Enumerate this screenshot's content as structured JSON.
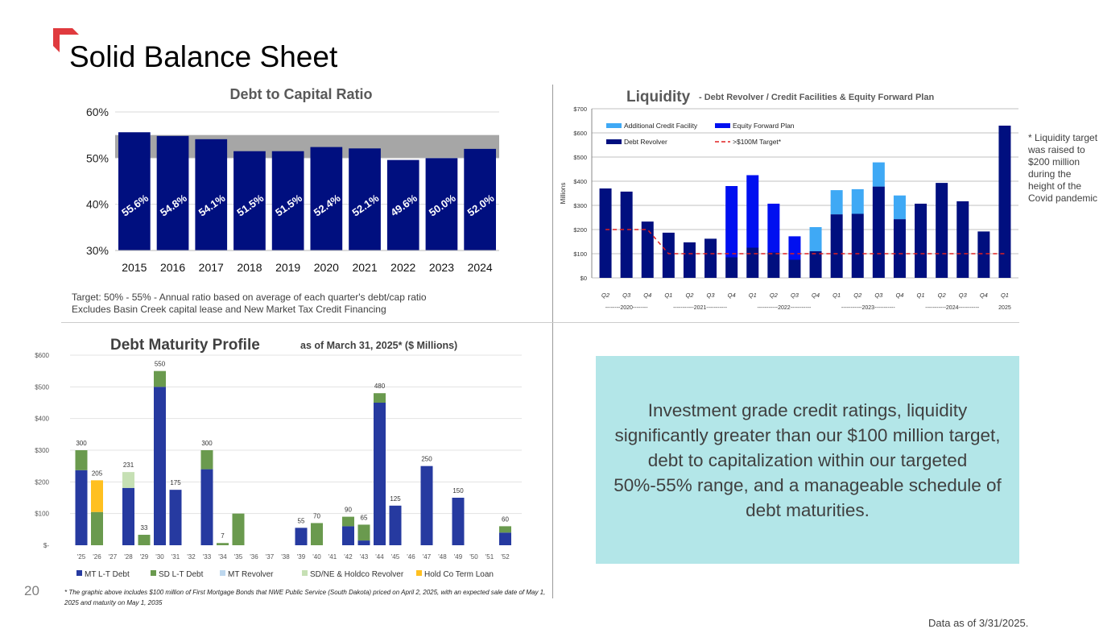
{
  "slide": {
    "title": "Solid Balance Sheet",
    "page_number": "20",
    "brand_color": "#e03a3e",
    "debt_cap_notes": [
      "Target:  50% - 55% - Annual ratio based on average of each quarter's debt/cap ratio",
      "Excludes Basin Creek capital lease and New Market Tax Credit Financing"
    ],
    "liquidity_note": "* Liquidity target was raised to $200 million during the height of the Covid pandemic",
    "callout": "Investment grade credit ratings, liquidity significantly greater than our $100 million target, debt to capitalization within our targeted 50%-55% range, and a manageable schedule of debt maturities.",
    "footnote": "* The graphic above includes $100 million of First Mortgage Bonds that NWE Public Service (South Dakota) priced on April 2, 2025, with an expected sale date of May 1, 2025 and maturity on May 1, 2035",
    "data_as_of": "Data as of 3/31/2025."
  },
  "chart_data": [
    {
      "type": "bar",
      "title": "Debt to Capital Ratio",
      "categories": [
        "2015",
        "2016",
        "2017",
        "2018",
        "2019",
        "2020",
        "2021",
        "2022",
        "2023",
        "2024"
      ],
      "values": [
        55.6,
        54.8,
        54.1,
        51.5,
        51.5,
        52.4,
        52.1,
        49.6,
        50.0,
        52.0
      ],
      "data_labels": [
        "55.6%",
        "54.8%",
        "54.1%",
        "51.5%",
        "51.5%",
        "52.4%",
        "52.1%",
        "49.6%",
        "50.0%",
        "52.0%"
      ],
      "ylim": [
        30,
        60
      ],
      "yticks": [
        "30%",
        "40%",
        "50%",
        "60%"
      ],
      "target_band": [
        50,
        55
      ],
      "colors": {
        "bar": "#000f7f",
        "band": "#a6a6a6"
      },
      "grid": true
    },
    {
      "type": "bar",
      "stacked": true,
      "title": "Liquidity",
      "subtitle": " - Debt Revolver / Credit Facilities & Equity Forward Plan",
      "ylabel": "Millions",
      "ylim": [
        0,
        700
      ],
      "yticks": [
        "$0",
        "$100",
        "$200",
        "$300",
        "$400",
        "$500",
        "$600",
        "$700"
      ],
      "categories": [
        "Q2",
        "Q3",
        "Q4",
        "Q1",
        "Q2",
        "Q3",
        "Q4",
        "Q1",
        "Q2",
        "Q3",
        "Q4",
        "Q1",
        "Q2",
        "Q3",
        "Q4",
        "Q1",
        "Q2",
        "Q3",
        "Q4",
        "Q1"
      ],
      "year_groups": [
        "--------2020--------",
        "-----------2021-----------",
        "-----------2022-----------",
        "-----------2023-----------",
        "-----------2024-----------",
        "2025"
      ],
      "series": [
        {
          "name": "Debt Revolver",
          "color": "#000f7f",
          "values": [
            370,
            357,
            233,
            187,
            147,
            162,
            85,
            125,
            105,
            75,
            110,
            263,
            265,
            378,
            243,
            307,
            393,
            317,
            192,
            630
          ]
        },
        {
          "name": "Equity Forward Plan",
          "color": "#0010f0",
          "values": [
            0,
            0,
            0,
            0,
            0,
            0,
            295,
            300,
            202,
            97,
            0,
            0,
            0,
            0,
            0,
            0,
            0,
            0,
            0,
            0
          ]
        },
        {
          "name": "Additional Credit Facility",
          "color": "#3fa9f5",
          "values": [
            0,
            0,
            0,
            0,
            0,
            0,
            0,
            0,
            0,
            0,
            100,
            100,
            102,
            100,
            98,
            0,
            0,
            0,
            0,
            0
          ]
        }
      ],
      "target_line": {
        "name": ">$100M Target*",
        "color": "#e02020",
        "values": [
          200,
          200,
          200,
          100,
          100,
          100,
          100,
          100,
          100,
          100,
          100,
          100,
          100,
          100,
          100,
          100,
          100,
          100,
          100,
          100
        ]
      },
      "legend": "top-left",
      "grid": true
    },
    {
      "type": "bar",
      "stacked": true,
      "title": "Debt Maturity Profile",
      "subtitle": " as of March 31, 2025* ($ Millions)",
      "ylim": [
        0,
        600
      ],
      "yticks": [
        "$-",
        "$100",
        "$200",
        "$300",
        "$400",
        "$500",
        "$600"
      ],
      "categories": [
        "'25",
        "'26",
        "'27",
        "'28",
        "'29",
        "'30",
        "'31",
        "'32",
        "'33",
        "'34",
        "'35",
        "'36",
        "'37",
        "'38",
        "'39",
        "'40",
        "'41",
        "'42",
        "'43",
        "'44",
        "'45",
        "'46",
        "'47",
        "'48",
        "'49",
        "'50",
        "'51",
        "'52"
      ],
      "totals_labels": [
        "300",
        "205",
        "",
        "231",
        "33",
        "550",
        "175",
        "",
        "300",
        "7",
        "",
        "",
        "",
        "",
        "55",
        "70",
        "",
        "90",
        "65",
        "480",
        "125",
        "",
        "250",
        "",
        "150",
        "",
        "",
        "60"
      ],
      "series": [
        {
          "name": "MT L-T Debt",
          "color": "#263aa0",
          "values": [
            237,
            0,
            0,
            181,
            0,
            500,
            175,
            0,
            240,
            0,
            0,
            0,
            0,
            0,
            55,
            0,
            0,
            60,
            15,
            450,
            125,
            0,
            250,
            0,
            150,
            0,
            0,
            40
          ]
        },
        {
          "name": "SD L-T Debt",
          "color": "#6a9a4e",
          "values": [
            63,
            105,
            0,
            0,
            33,
            50,
            0,
            0,
            60,
            7,
            100,
            0,
            0,
            0,
            0,
            70,
            0,
            30,
            50,
            30,
            0,
            0,
            0,
            0,
            0,
            0,
            0,
            20
          ]
        },
        {
          "name": "MT Revolver",
          "color": "#bdd7ee",
          "values": [
            0,
            0,
            0,
            0,
            0,
            0,
            0,
            0,
            0,
            0,
            0,
            0,
            0,
            0,
            0,
            0,
            0,
            0,
            0,
            0,
            0,
            0,
            0,
            0,
            0,
            0,
            0,
            0
          ]
        },
        {
          "name": "SD/NE & Holdco Revolver",
          "color": "#c6e0b4",
          "values": [
            0,
            0,
            0,
            50,
            0,
            0,
            0,
            0,
            0,
            0,
            0,
            0,
            0,
            0,
            0,
            0,
            0,
            0,
            0,
            0,
            0,
            0,
            0,
            0,
            0,
            0,
            0,
            0
          ]
        },
        {
          "name": "Hold Co Term Loan",
          "color": "#ffc020",
          "values": [
            0,
            100,
            0,
            0,
            0,
            0,
            0,
            0,
            0,
            0,
            0,
            0,
            0,
            0,
            0,
            0,
            0,
            0,
            0,
            0,
            0,
            0,
            0,
            0,
            0,
            0,
            0,
            0
          ]
        }
      ],
      "legend": "bottom",
      "grid": true
    }
  ]
}
